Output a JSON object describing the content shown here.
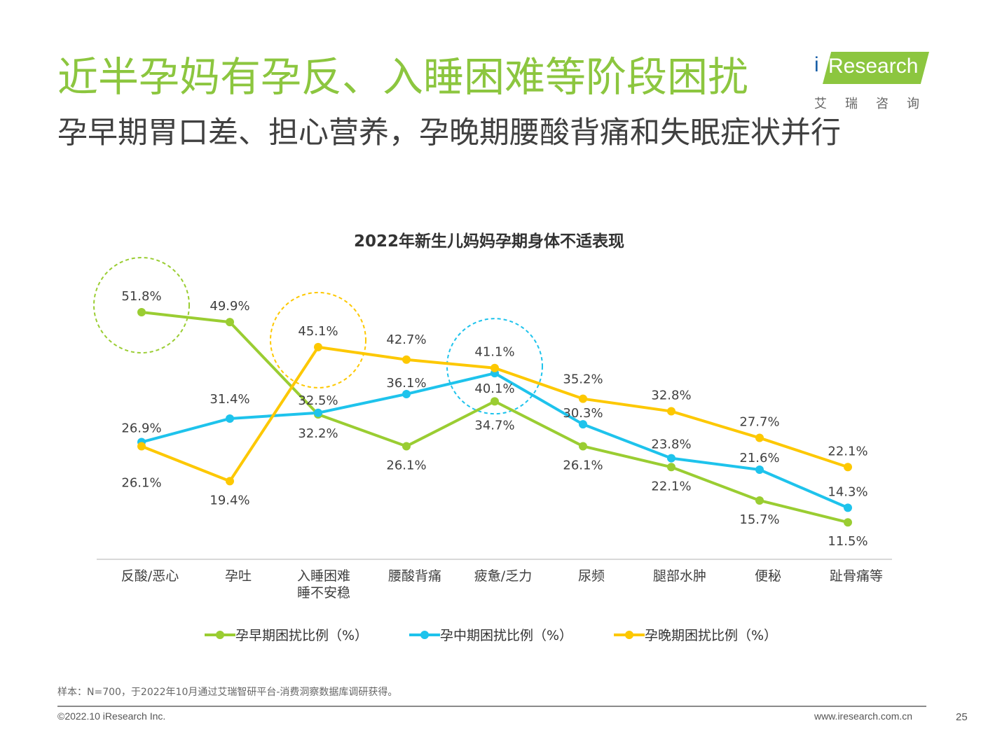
{
  "header": {
    "title": "近半孕妈有孕反、入睡困难等阶段困扰",
    "subtitle": "孕早期胃口差、担心营养，孕晚期腰酸背痛和失眠症状并行"
  },
  "logo": {
    "i": "i",
    "text": "Research",
    "sub": "艾瑞咨询",
    "colors": {
      "bar": "#8cc63f",
      "dot": "#1a5fa8"
    }
  },
  "chart_data": {
    "type": "line",
    "title": "2022年新生儿妈妈孕期身体不适表现",
    "categories": [
      "反酸/恶心",
      "孕吐",
      "入睡困难\n睡不安稳",
      "腰酸背痛",
      "疲惫/乏力",
      "尿频",
      "腿部水肿",
      "便秘",
      "趾骨痛等"
    ],
    "ylim": [
      0,
      60
    ],
    "series": [
      {
        "name": "孕早期困扰比例（%）",
        "color": "#9acd32",
        "values": [
          51.8,
          49.9,
          32.2,
          26.1,
          34.7,
          26.1,
          22.1,
          15.7,
          11.5
        ]
      },
      {
        "name": "孕中期困扰比例（%）",
        "color": "#1ec3ec",
        "values": [
          26.9,
          31.4,
          32.5,
          36.1,
          40.1,
          30.3,
          23.8,
          21.6,
          14.3
        ]
      },
      {
        "name": "孕晚期困扰比例（%）",
        "color": "#fdc800",
        "values": [
          26.1,
          19.4,
          45.1,
          42.7,
          41.1,
          35.2,
          32.8,
          27.7,
          22.1
        ]
      }
    ],
    "labels": [
      [
        "51.8%",
        "49.9%",
        "32.2%",
        "26.1%",
        "34.7%",
        "26.1%",
        "22.1%",
        "15.7%",
        "11.5%"
      ],
      [
        "26.9%",
        "31.4%",
        "32.5%",
        "36.1%",
        "40.1%",
        "30.3%",
        "23.8%",
        "21.6%",
        "14.3%"
      ],
      [
        "26.1%",
        "19.4%",
        "45.1%",
        "42.7%",
        "41.1%",
        "35.2%",
        "32.8%",
        "27.7%",
        "22.1%"
      ]
    ],
    "highlights": [
      {
        "category_index": 0,
        "series_index": 0,
        "color": "#9acd32"
      },
      {
        "category_index": 2,
        "series_index": 2,
        "color": "#fdc800"
      },
      {
        "category_index": 4,
        "series_index": 1,
        "color": "#1ec3ec"
      }
    ]
  },
  "footer": {
    "note": "样本：N=700，于2022年10月通过艾瑞智研平台-消费洞察数据库调研获得。",
    "copyright": "©2022.10 iResearch Inc.",
    "url": "www.iresearch.com.cn",
    "page": "25"
  }
}
